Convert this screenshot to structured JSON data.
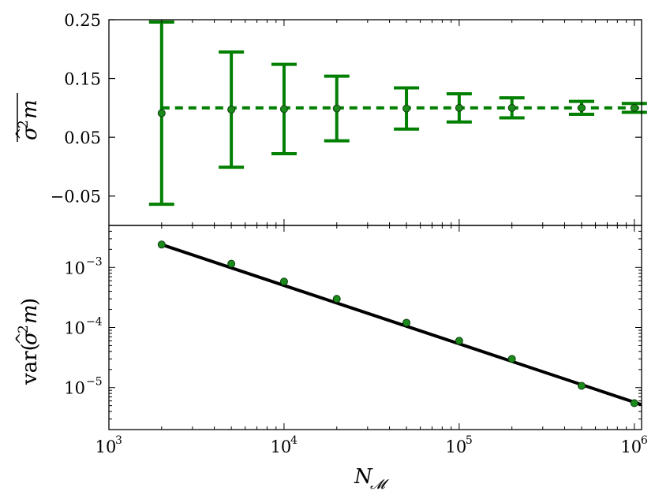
{
  "colors": {
    "series": "#007f00",
    "marker_fill": "#1a8a1a",
    "marker_edge": "#0d3d0d",
    "fit_line": "#000000",
    "background": "#ffffff"
  },
  "chart_data": [
    {
      "type": "scatter",
      "panel": "top",
      "title": "",
      "xlabel": "",
      "ylabel": "σ̂²_m (mean)",
      "xscale": "log",
      "xlim": [
        1000,
        1100000
      ],
      "ylim": [
        -0.1,
        0.25
      ],
      "yticks": [
        0.25,
        0.15,
        0.05,
        -0.05
      ],
      "ytick_labels": [
        "0.25",
        "0.15",
        "0.05",
        "−0.05"
      ],
      "grid": false,
      "series": [
        {
          "kind": "points-with-errorbars",
          "x": [
            2000,
            5000,
            10000,
            20000,
            50000,
            100000,
            200000,
            500000,
            1000000
          ],
          "y": [
            0.091,
            0.097,
            0.098,
            0.099,
            0.099,
            0.1,
            0.1,
            0.1,
            0.1
          ],
          "yerr": [
            0.155,
            0.098,
            0.076,
            0.055,
            0.035,
            0.024,
            0.017,
            0.011,
            0.0075
          ]
        },
        {
          "kind": "reference-line",
          "style": "dashed",
          "y": 0.1,
          "x_range": [
            2000,
            1100000
          ]
        }
      ]
    },
    {
      "type": "scatter",
      "panel": "bottom",
      "title": "",
      "xlabel": "N_𝓜",
      "ylabel": "var(σ̂²_m)",
      "xscale": "log",
      "yscale": "log",
      "xlim": [
        1000,
        1100000
      ],
      "ylim": [
        2e-06,
        0.005
      ],
      "xticks": [
        1000,
        10000,
        100000,
        1000000
      ],
      "xtick_labels": [
        {
          "base": "10",
          "exp": "3"
        },
        {
          "base": "10",
          "exp": "4"
        },
        {
          "base": "10",
          "exp": "5"
        },
        {
          "base": "10",
          "exp": "6"
        }
      ],
      "yticks": [
        0.001,
        0.0001,
        1e-05
      ],
      "ytick_labels": [
        {
          "base": "10",
          "exp": "−3"
        },
        {
          "base": "10",
          "exp": "−4"
        },
        {
          "base": "10",
          "exp": "−5"
        }
      ],
      "grid": false,
      "series": [
        {
          "kind": "points",
          "x": [
            2000,
            5000,
            10000,
            20000,
            50000,
            100000,
            200000,
            500000,
            1000000
          ],
          "y": [
            0.0024,
            0.00115,
            0.00058,
            0.0003,
            0.00012,
            6e-05,
            3e-05,
            1.07e-05,
            5.5e-06
          ]
        },
        {
          "kind": "fit-line",
          "style": "solid",
          "x": [
            2000,
            1100000
          ],
          "y": [
            0.0024,
            5.2e-06
          ]
        }
      ]
    }
  ]
}
